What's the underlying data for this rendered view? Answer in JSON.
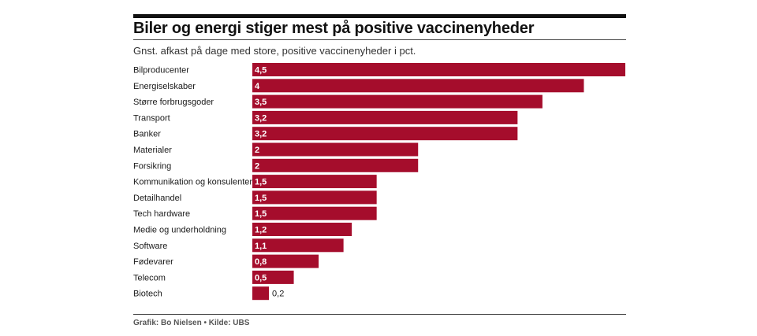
{
  "header": {
    "title": "Biler og energi stiger mest på positive vaccinenyheder",
    "subtitle": "Gnst. afkast på dage med store, positive vaccinenyheder i pct."
  },
  "footer": {
    "source": "Grafik: Bo Nielsen • Kilde: UBS"
  },
  "chart_data": {
    "type": "bar",
    "orientation": "horizontal",
    "categories": [
      "Bilproducenter",
      "Energiselskaber",
      "Større forbrugsgoder",
      "Transport",
      "Banker",
      "Materialer",
      "Forsikring",
      "Kommunikation og konsulenter",
      "Detailhandel",
      "Tech hardware",
      "Medie og underholdning",
      "Software",
      "Fødevarer",
      "Telecom",
      "Biotech"
    ],
    "values": [
      4.5,
      4,
      3.5,
      3.2,
      3.2,
      2,
      2,
      1.5,
      1.5,
      1.5,
      1.2,
      1.1,
      0.8,
      0.5,
      0.2
    ],
    "value_labels": [
      "4,5",
      "4",
      "3,5",
      "3,2",
      "3,2",
      "2",
      "2",
      "1,5",
      "1,5",
      "1,5",
      "1,2",
      "1,1",
      "0,8",
      "0,5",
      "0,2"
    ],
    "xlim": [
      0,
      4.5
    ],
    "bar_color": "#a50d2c",
    "grid": false,
    "legend": "none"
  }
}
